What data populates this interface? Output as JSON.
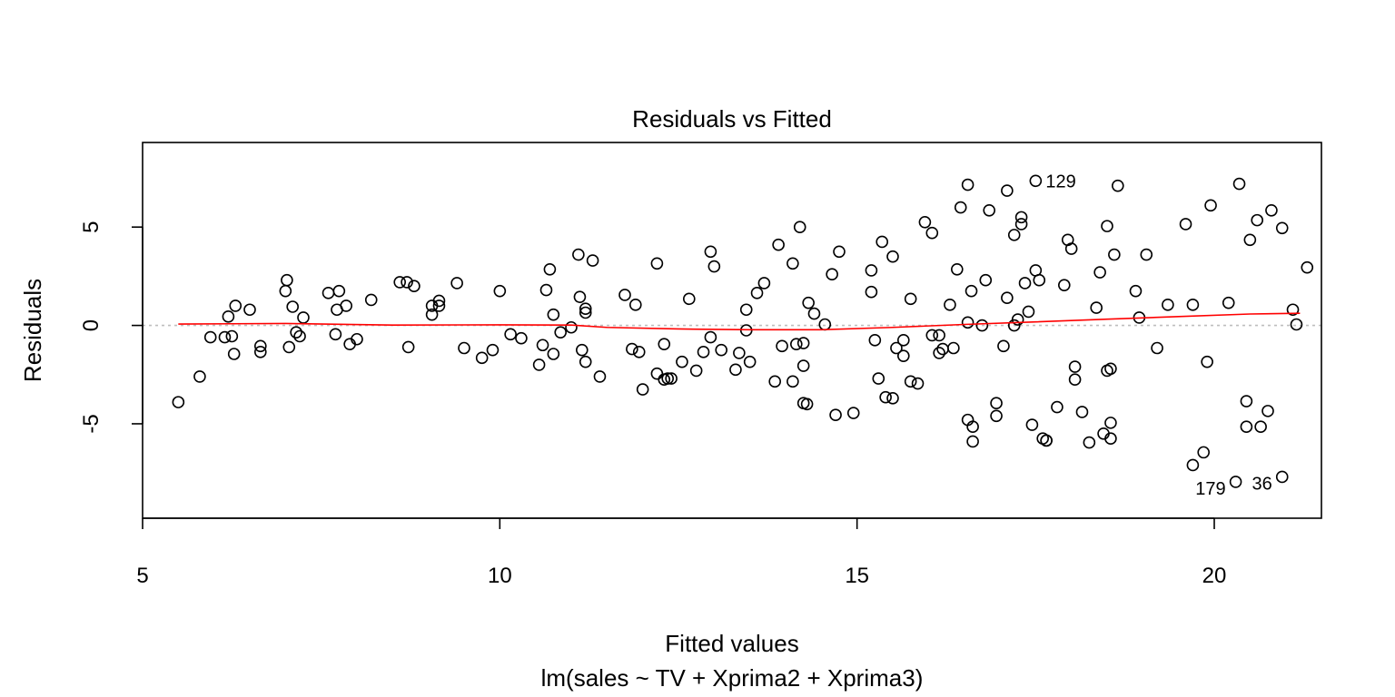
{
  "chart_data": {
    "type": "scatter",
    "title": "Residuals vs Fitted",
    "xlabel": "Fitted values",
    "subtitle": "lm(sales ~ TV + Xprima2 + Xprima3)",
    "ylabel": "Residuals",
    "xlim": [
      5,
      21.5
    ],
    "ylim": [
      -9.8,
      9.3
    ],
    "xticks": [
      5,
      10,
      15,
      20
    ],
    "yticks": [
      -5,
      0,
      5
    ],
    "grid": false,
    "reference_line_y": 0,
    "point_color": "#000000",
    "smooth_color": "#ff0000",
    "reference_color": "#bebebe",
    "points": [
      [
        5.5,
        -3.9
      ],
      [
        5.8,
        -2.6
      ],
      [
        5.95,
        -0.6
      ],
      [
        6.15,
        -0.6
      ],
      [
        6.2,
        0.45
      ],
      [
        6.25,
        -0.55
      ],
      [
        6.3,
        1.0
      ],
      [
        6.28,
        -1.45
      ],
      [
        6.5,
        0.8
      ],
      [
        6.65,
        -1.05
      ],
      [
        6.65,
        -1.35
      ],
      [
        7.0,
        1.75
      ],
      [
        7.02,
        2.3
      ],
      [
        7.05,
        -1.1
      ],
      [
        7.1,
        0.95
      ],
      [
        7.15,
        -0.35
      ],
      [
        7.2,
        -0.55
      ],
      [
        7.25,
        0.4
      ],
      [
        7.6,
        1.65
      ],
      [
        7.7,
        -0.45
      ],
      [
        7.72,
        0.8
      ],
      [
        7.75,
        1.75
      ],
      [
        7.85,
        1.0
      ],
      [
        7.9,
        -0.95
      ],
      [
        8.0,
        -0.7
      ],
      [
        8.2,
        1.3
      ],
      [
        8.6,
        2.2
      ],
      [
        8.7,
        2.2
      ],
      [
        8.72,
        -1.1
      ],
      [
        8.8,
        2.0
      ],
      [
        9.05,
        1.0
      ],
      [
        9.05,
        0.55
      ],
      [
        9.15,
        1.25
      ],
      [
        9.15,
        1.0
      ],
      [
        9.4,
        2.15
      ],
      [
        9.5,
        -1.15
      ],
      [
        9.75,
        -1.65
      ],
      [
        9.9,
        -1.25
      ],
      [
        10.0,
        1.75
      ],
      [
        10.15,
        -0.45
      ],
      [
        10.3,
        -0.65
      ],
      [
        10.55,
        -2.0
      ],
      [
        10.6,
        -1.0
      ],
      [
        10.65,
        1.8
      ],
      [
        10.7,
        2.85
      ],
      [
        10.75,
        -1.45
      ],
      [
        10.75,
        0.55
      ],
      [
        10.85,
        -0.35
      ],
      [
        11.0,
        -0.1
      ],
      [
        11.1,
        3.6
      ],
      [
        11.12,
        1.45
      ],
      [
        11.15,
        -1.25
      ],
      [
        11.2,
        0.85
      ],
      [
        11.2,
        0.65
      ],
      [
        11.2,
        -1.85
      ],
      [
        11.3,
        3.3
      ],
      [
        11.4,
        -2.6
      ],
      [
        11.75,
        1.55
      ],
      [
        11.85,
        -1.2
      ],
      [
        11.9,
        1.05
      ],
      [
        11.95,
        -1.35
      ],
      [
        12.0,
        -3.25
      ],
      [
        12.2,
        3.15
      ],
      [
        12.2,
        -2.45
      ],
      [
        12.3,
        -2.75
      ],
      [
        12.35,
        -2.7
      ],
      [
        12.3,
        -0.95
      ],
      [
        12.4,
        -2.7
      ],
      [
        12.55,
        -1.85
      ],
      [
        12.65,
        1.35
      ],
      [
        12.75,
        -2.3
      ],
      [
        12.85,
        -1.35
      ],
      [
        12.95,
        3.75
      ],
      [
        12.95,
        -0.6
      ],
      [
        13.0,
        3.0
      ],
      [
        13.1,
        -1.25
      ],
      [
        13.3,
        -2.25
      ],
      [
        13.35,
        -1.4
      ],
      [
        13.45,
        0.8
      ],
      [
        13.45,
        -0.25
      ],
      [
        13.5,
        -1.85
      ],
      [
        13.6,
        1.65
      ],
      [
        13.7,
        2.15
      ],
      [
        13.85,
        -2.85
      ],
      [
        13.9,
        4.1
      ],
      [
        13.95,
        -1.05
      ],
      [
        14.1,
        -2.85
      ],
      [
        14.1,
        3.15
      ],
      [
        14.15,
        -0.95
      ],
      [
        14.2,
        5.0
      ],
      [
        14.25,
        -0.9
      ],
      [
        14.25,
        -2.05
      ],
      [
        14.25,
        -3.95
      ],
      [
        14.3,
        -4.0
      ],
      [
        14.32,
        1.15
      ],
      [
        14.4,
        0.6
      ],
      [
        14.55,
        0.05
      ],
      [
        14.65,
        2.6
      ],
      [
        14.7,
        -4.55
      ],
      [
        14.75,
        3.75
      ],
      [
        14.95,
        -4.45
      ],
      [
        15.2,
        1.7
      ],
      [
        15.2,
        2.8
      ],
      [
        15.25,
        -0.75
      ],
      [
        15.3,
        -2.7
      ],
      [
        15.35,
        4.25
      ],
      [
        15.4,
        -3.65
      ],
      [
        15.5,
        -3.7
      ],
      [
        15.55,
        -1.15
      ],
      [
        15.5,
        3.5
      ],
      [
        15.65,
        -0.75
      ],
      [
        15.65,
        -1.55
      ],
      [
        15.75,
        1.35
      ],
      [
        15.75,
        -2.85
      ],
      [
        15.85,
        -2.95
      ],
      [
        15.95,
        5.25
      ],
      [
        16.05,
        4.7
      ],
      [
        16.05,
        -0.5
      ],
      [
        16.15,
        -0.5
      ],
      [
        16.15,
        -1.4
      ],
      [
        16.2,
        -1.2
      ],
      [
        16.3,
        1.05
      ],
      [
        16.35,
        -1.15
      ],
      [
        16.4,
        2.85
      ],
      [
        16.45,
        6.0
      ],
      [
        16.55,
        7.15
      ],
      [
        16.55,
        0.15
      ],
      [
        16.6,
        1.75
      ],
      [
        16.55,
        -4.8
      ],
      [
        16.62,
        -5.15
      ],
      [
        16.62,
        -5.9
      ],
      [
        16.75,
        0.0
      ],
      [
        16.8,
        2.3
      ],
      [
        16.85,
        5.85
      ],
      [
        16.95,
        -3.95
      ],
      [
        16.95,
        -4.6
      ],
      [
        17.05,
        -1.05
      ],
      [
        17.1,
        6.85
      ],
      [
        17.1,
        1.4
      ],
      [
        17.2,
        4.6
      ],
      [
        17.2,
        0.0
      ],
      [
        17.25,
        0.3
      ],
      [
        17.3,
        5.5
      ],
      [
        17.3,
        5.15
      ],
      [
        17.35,
        2.15
      ],
      [
        17.4,
        0.7
      ],
      [
        17.45,
        -5.05
      ],
      [
        17.5,
        7.35
      ],
      [
        17.5,
        2.8
      ],
      [
        17.55,
        2.3
      ],
      [
        17.6,
        -5.75
      ],
      [
        17.65,
        -5.85
      ],
      [
        17.65,
        -5.85
      ],
      [
        17.8,
        -4.15
      ],
      [
        17.9,
        2.05
      ],
      [
        17.95,
        4.35
      ],
      [
        18.0,
        3.9
      ],
      [
        18.05,
        -2.1
      ],
      [
        18.05,
        -2.75
      ],
      [
        18.15,
        -4.4
      ],
      [
        18.25,
        -5.95
      ],
      [
        18.35,
        0.9
      ],
      [
        18.4,
        2.7
      ],
      [
        18.45,
        -5.5
      ],
      [
        18.5,
        5.05
      ],
      [
        18.5,
        -2.3
      ],
      [
        18.55,
        -2.2
      ],
      [
        18.55,
        -4.95
      ],
      [
        18.55,
        -5.75
      ],
      [
        18.6,
        3.6
      ],
      [
        18.65,
        7.1
      ],
      [
        18.9,
        1.75
      ],
      [
        18.95,
        0.4
      ],
      [
        19.05,
        3.6
      ],
      [
        19.2,
        -1.15
      ],
      [
        19.35,
        1.05
      ],
      [
        19.6,
        5.15
      ],
      [
        19.7,
        1.05
      ],
      [
        19.7,
        -7.1
      ],
      [
        19.85,
        -6.45
      ],
      [
        19.9,
        -1.85
      ],
      [
        19.95,
        6.1
      ],
      [
        20.2,
        1.15
      ],
      [
        20.3,
        -7.95
      ],
      [
        20.35,
        7.2
      ],
      [
        20.45,
        -3.85
      ],
      [
        20.45,
        -5.15
      ],
      [
        20.5,
        4.35
      ],
      [
        20.6,
        5.35
      ],
      [
        20.65,
        -5.15
      ],
      [
        20.75,
        -4.35
      ],
      [
        20.8,
        5.85
      ],
      [
        20.95,
        4.95
      ],
      [
        20.95,
        -7.7
      ],
      [
        21.1,
        0.8
      ],
      [
        21.15,
        0.05
      ],
      [
        21.3,
        2.95
      ]
    ],
    "smooth_line": [
      [
        5.5,
        0.07
      ],
      [
        7.0,
        0.1
      ],
      [
        8.5,
        0.02
      ],
      [
        10.0,
        0.03
      ],
      [
        11.0,
        0.02
      ],
      [
        11.5,
        -0.1
      ],
      [
        12.5,
        -0.18
      ],
      [
        13.5,
        -0.22
      ],
      [
        14.5,
        -0.22
      ],
      [
        15.5,
        -0.1
      ],
      [
        16.5,
        0.05
      ],
      [
        17.5,
        0.18
      ],
      [
        18.5,
        0.32
      ],
      [
        19.5,
        0.45
      ],
      [
        20.5,
        0.58
      ],
      [
        21.2,
        0.62
      ]
    ],
    "labeled_points": [
      {
        "label": "129",
        "x": 17.5,
        "y": 7.35,
        "side": "right"
      },
      {
        "label": "179",
        "x": 20.3,
        "y": -7.95,
        "side": "left"
      },
      {
        "label": "36",
        "x": 20.95,
        "y": -7.7,
        "side": "left"
      }
    ]
  }
}
